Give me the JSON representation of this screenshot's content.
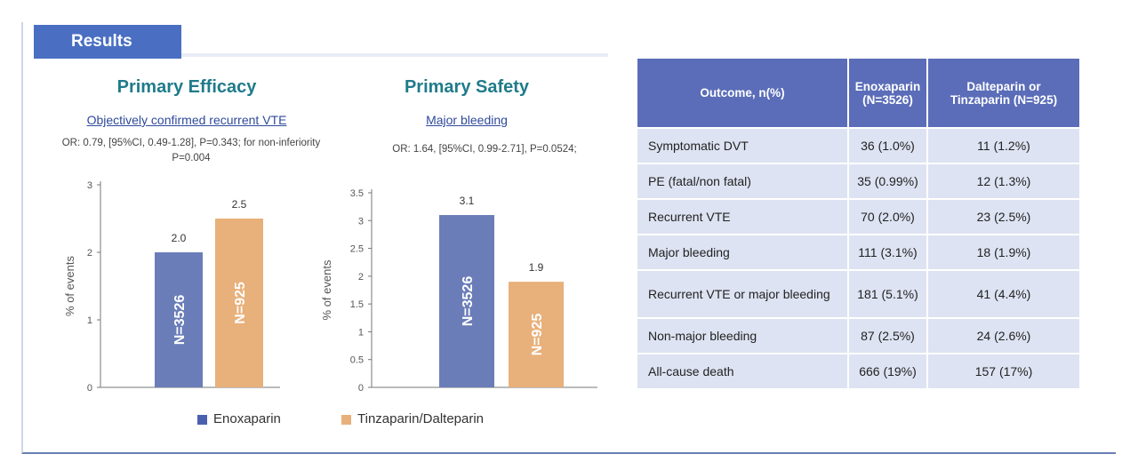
{
  "header": {
    "tab_label": "Results"
  },
  "efficacy": {
    "title": "Primary Efficacy",
    "subtitle": "Objectively confirmed recurrent VTE",
    "stat": "OR: 0.79, [95%CI, 0.49-1.28], P=0.343; for non-inferiority P=0.004"
  },
  "safety": {
    "title": "Primary Safety",
    "subtitle": "Major bleeding",
    "stat": "OR: 1.64, [95%CI, 0.99-2.71], P=0.0524;"
  },
  "chart_data": [
    {
      "type": "bar",
      "title": "Primary Efficacy",
      "ylabel": "% of events",
      "ylim": [
        0,
        3
      ],
      "yticks": [
        "0",
        "1",
        "2",
        "3"
      ],
      "categories": [
        "Enoxaparin",
        "Tinzaparin/Dalteparin"
      ],
      "values": [
        2.0,
        2.5
      ],
      "value_labels": [
        "2.0",
        "2.5"
      ],
      "bar_labels": [
        "N=3526",
        "N=925"
      ],
      "colors": [
        "#6a7db8",
        "#e8b07a"
      ],
      "grid": false
    },
    {
      "type": "bar",
      "title": "Primary Safety",
      "ylabel": "% of events",
      "ylim": [
        0,
        3.5
      ],
      "yticks": [
        "0",
        "0.5",
        "1",
        "1.5",
        "2",
        "2.5",
        "3",
        "3.5"
      ],
      "categories": [
        "Enoxaparin",
        "Tinzaparin/Dalteparin"
      ],
      "values": [
        3.1,
        1.9
      ],
      "value_labels": [
        "3.1",
        "1.9"
      ],
      "bar_labels": [
        "N=3526",
        "N=925"
      ],
      "colors": [
        "#6a7db8",
        "#e8b07a"
      ],
      "grid": false
    }
  ],
  "legend": {
    "items": [
      {
        "label": "Enoxaparin",
        "color": "#4a5fae"
      },
      {
        "label": "Tinzaparin/Dalteparin",
        "color": "#e8b07a"
      }
    ]
  },
  "table": {
    "headers": [
      "Outcome, n(%)",
      "Enoxaparin (N=3526)",
      "Dalteparin or Tinzaparin (N=925)"
    ],
    "header_lines": [
      [
        "Outcome, n(%)"
      ],
      [
        "Enoxaparin",
        "(N=3526)"
      ],
      [
        "Dalteparin or",
        "Tinzaparin (N=925)"
      ]
    ],
    "rows": [
      {
        "outcome": "Symptomatic DVT",
        "enox": "36 (1.0%)",
        "dalt": "11 (1.2%)"
      },
      {
        "outcome": "PE (fatal/non fatal)",
        "enox": "35 (0.99%)",
        "dalt": "12 (1.3%)"
      },
      {
        "outcome": "Recurrent VTE",
        "enox": "70 (2.0%)",
        "dalt": "23 (2.5%)"
      },
      {
        "outcome": "Major bleeding",
        "enox": "111 (3.1%)",
        "dalt": "18 (1.9%)"
      },
      {
        "outcome": "Recurrent VTE or major bleeding",
        "enox": "181 (5.1%)",
        "dalt": "41 (4.4%)"
      },
      {
        "outcome": "Non-major bleeding",
        "enox": "87 (2.5%)",
        "dalt": "24 (2.6%)"
      },
      {
        "outcome": "All-cause death",
        "enox": "666 (19%)",
        "dalt": "157 (17%)"
      }
    ]
  }
}
